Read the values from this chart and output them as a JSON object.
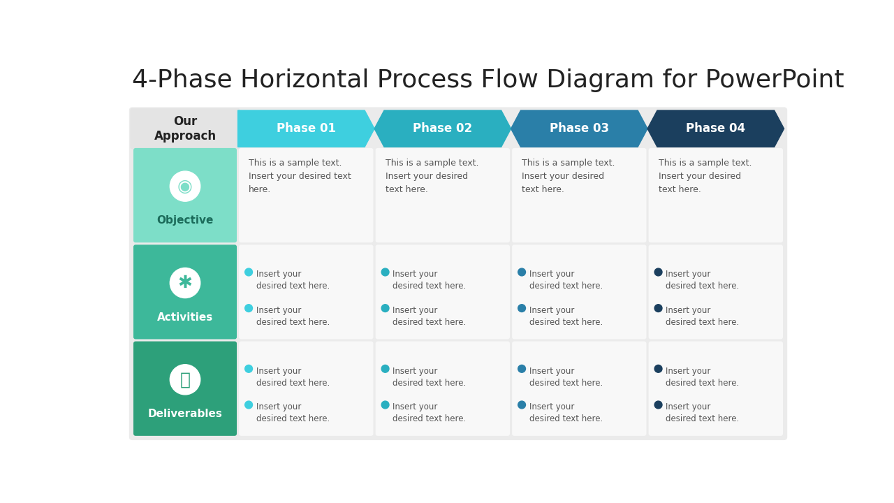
{
  "title": "4-Phase Horizontal Process Flow Diagram for PowerPoint",
  "title_fontsize": 26,
  "title_color": "#222222",
  "background_color": "#ffffff",
  "phases": [
    "Phase 01",
    "Phase 02",
    "Phase 03",
    "Phase 04"
  ],
  "phase_colors": [
    "#3ECFDF",
    "#2AAFC0",
    "#2A7FA8",
    "#1B3F5E"
  ],
  "row_labels": [
    "Our\nApproach",
    "Objective",
    "Activities",
    "Deliverables"
  ],
  "row_header_colors": [
    "#E4E4E4",
    "#7DDEC8",
    "#3DB89A",
    "#2DA07A"
  ],
  "row_header_text_colors": [
    "#222222",
    "#1B6B5A",
    "#ffffff",
    "#ffffff"
  ],
  "objective_texts": [
    "This is a sample text.\nInsert your desired text\nhere.",
    "This is a sample text.\nInsert your desired\ntext here.",
    "This is a sample text.\nInsert your desired\ntext here.",
    "This is a sample text.\nInsert your desired\ntext here."
  ],
  "outer_bg": "#EBEBEB",
  "cell_bg": "#F8F8F8",
  "text_color": "#555555"
}
